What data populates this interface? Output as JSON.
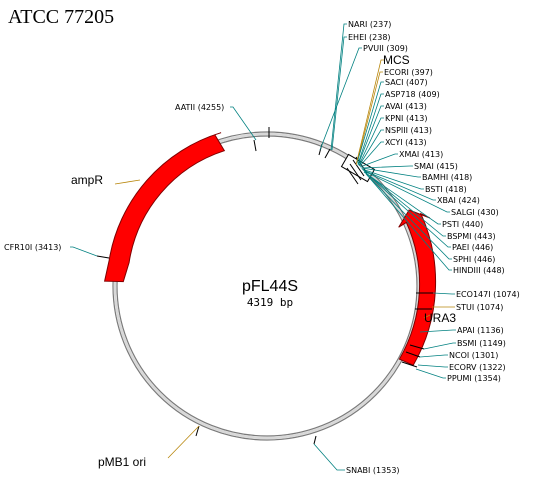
{
  "header": {
    "strain": "ATCC 77205"
  },
  "plasmid": {
    "name": "pFL44S",
    "size": "4319 bp"
  },
  "features": [
    {
      "id": "ampR",
      "label": "ampR"
    },
    {
      "id": "ura3",
      "label": "URA3"
    },
    {
      "id": "mcs",
      "label": "MCS"
    },
    {
      "id": "pmb1",
      "label": "pMB1 ori"
    }
  ],
  "sites": [
    {
      "id": "nari",
      "label": "NARI (237)"
    },
    {
      "id": "ehei",
      "label": "EHEI (238)"
    },
    {
      "id": "pvuii",
      "label": "PVUII (309)"
    },
    {
      "id": "ecori",
      "label": "ECORI (397)"
    },
    {
      "id": "saci",
      "label": "SACI (407)"
    },
    {
      "id": "asp718",
      "label": "ASP718 (409)"
    },
    {
      "id": "avai",
      "label": "AVAI (413)"
    },
    {
      "id": "kpni",
      "label": "KPNI (413)"
    },
    {
      "id": "nspiii",
      "label": "NSPIII (413)"
    },
    {
      "id": "xcyi",
      "label": "XCYI (413)"
    },
    {
      "id": "xmai",
      "label": "XMAI (413)"
    },
    {
      "id": "smai",
      "label": "SMAI (415)"
    },
    {
      "id": "bamhi",
      "label": "BAMHI (418)"
    },
    {
      "id": "bsti",
      "label": "BSTI (418)"
    },
    {
      "id": "xbai",
      "label": "XBAI (424)"
    },
    {
      "id": "salgi",
      "label": "SALGI (430)"
    },
    {
      "id": "psti",
      "label": "PSTI (440)"
    },
    {
      "id": "bspmi",
      "label": "BSPMI (443)"
    },
    {
      "id": "paei",
      "label": "PAEI (446)"
    },
    {
      "id": "sphi",
      "label": "SPHI (446)"
    },
    {
      "id": "hindiii",
      "label": "HINDIII (448)"
    },
    {
      "id": "eco147i",
      "label": "ECO147I (1074)"
    },
    {
      "id": "stui",
      "label": "STUI (1074)"
    },
    {
      "id": "apai",
      "label": "APAI (1136)"
    },
    {
      "id": "bsmi",
      "label": "BSMI (1149)"
    },
    {
      "id": "ncoi",
      "label": "NCOI (1301)"
    },
    {
      "id": "ecorv",
      "label": "ECORV (1322)"
    },
    {
      "id": "ppumi",
      "label": "PPUMI (1354)"
    },
    {
      "id": "snabi",
      "label": "SNABI (1353)"
    },
    {
      "id": "aatii",
      "label": "AATII (4255)"
    },
    {
      "id": "cfr10i",
      "label": "CFR10I (3413)"
    }
  ],
  "colors": {
    "feature_fill": "#ff0000",
    "leader_teal": "#008080",
    "leader_olive": "#b8860b",
    "backbone": "#a0a0a0"
  }
}
